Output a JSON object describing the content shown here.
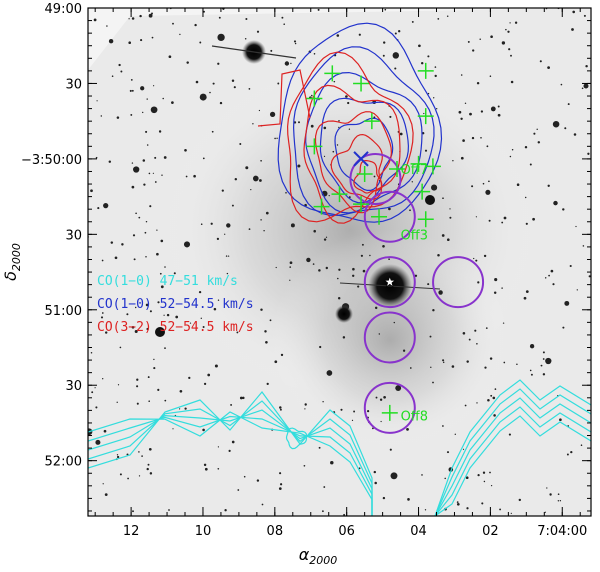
{
  "chart_data": {
    "type": "contour_overlay",
    "image": "grayscale optical/NIR image of star field with nebulosity",
    "xlabel_symbol": "α",
    "xlabel_sub": "2000",
    "ylabel_symbol": "δ",
    "ylabel_sub": "2000",
    "x_ticks": [
      {
        "ra_s": 12,
        "label": "12"
      },
      {
        "ra_s": 10,
        "label": "10"
      },
      {
        "ra_s": 8,
        "label": "08"
      },
      {
        "ra_s": 6,
        "label": "06"
      },
      {
        "ra_s": 4,
        "label": "04"
      },
      {
        "ra_s": 2,
        "label": "02"
      },
      {
        "ra_s": 0,
        "label": "7:04:00"
      }
    ],
    "y_ticks": [
      {
        "dec_arcsec_below_49": 0,
        "label": "49:00"
      },
      {
        "dec_arcsec_below_49": 30,
        "label": "30"
      },
      {
        "dec_arcsec_below_49": 60,
        "label": "−3:50:00"
      },
      {
        "dec_arcsec_below_49": 90,
        "label": "30"
      },
      {
        "dec_arcsec_below_49": 120,
        "label": "51:00"
      },
      {
        "dec_arcsec_below_49": 150,
        "label": "30"
      },
      {
        "dec_arcsec_below_49": 180,
        "label": "52:00"
      }
    ],
    "xlim_ra_s": [
      13.2,
      -0.8
    ],
    "ylim_dec_arcsec_below_49": [
      0,
      202
    ],
    "legend": [
      {
        "text": "CO(1−0) 47−51  km/s",
        "color": "#33dddd"
      },
      {
        "text": "CO(1−0) 52−54.5 km/s",
        "color": "#2233cc"
      },
      {
        "text": "CO(3−2) 52−54.5 km/s",
        "color": "#dd2222"
      }
    ],
    "series": [
      {
        "name": "CO(1-0) 47-51 km/s",
        "color": "#33dddd",
        "levels": 5
      },
      {
        "name": "CO(1-0) 52-54.5 km/s",
        "color": "#2233cc",
        "levels": 5
      },
      {
        "name": "CO(3-2) 52-54.5 km/s",
        "color": "#dd2222",
        "levels": 5
      }
    ],
    "star_marker": {
      "ra_s": 4.8,
      "dec_arcsec_below_49": 109
    },
    "circles": [
      {
        "ra_s": 5.2,
        "dec_arcsec_below_49": 68
      },
      {
        "ra_s": 4.8,
        "dec_arcsec_below_49": 83
      },
      {
        "ra_s": 4.8,
        "dec_arcsec_below_49": 109
      },
      {
        "ra_s": 2.9,
        "dec_arcsec_below_49": 109
      },
      {
        "ra_s": 4.8,
        "dec_arcsec_below_49": 131
      },
      {
        "ra_s": 4.8,
        "dec_arcsec_below_49": 159
      }
    ],
    "crosses": [
      {
        "ra_s": 6.4,
        "dec_arcsec_below_49": 26
      },
      {
        "ra_s": 5.6,
        "dec_arcsec_below_49": 30
      },
      {
        "ra_s": 3.8,
        "dec_arcsec_below_49": 25
      },
      {
        "ra_s": 6.9,
        "dec_arcsec_below_49": 36
      },
      {
        "ra_s": 3.8,
        "dec_arcsec_below_49": 43
      },
      {
        "ra_s": 5.3,
        "dec_arcsec_below_49": 45
      },
      {
        "ra_s": 6.9,
        "dec_arcsec_below_49": 55
      },
      {
        "ra_s": 4.0,
        "dec_arcsec_below_49": 62
      },
      {
        "ra_s": 5.5,
        "dec_arcsec_below_49": 66
      },
      {
        "ra_s": 4.6,
        "dec_arcsec_below_49": 64
      },
      {
        "ra_s": 3.6,
        "dec_arcsec_below_49": 63
      },
      {
        "ra_s": 6.2,
        "dec_arcsec_below_49": 74
      },
      {
        "ra_s": 3.9,
        "dec_arcsec_below_49": 73
      },
      {
        "ra_s": 5.6,
        "dec_arcsec_below_49": 78
      },
      {
        "ra_s": 6.7,
        "dec_arcsec_below_49": 79
      },
      {
        "ra_s": 5.1,
        "dec_arcsec_below_49": 83
      },
      {
        "ra_s": 3.8,
        "dec_arcsec_below_49": 84
      },
      {
        "ra_s": 4.8,
        "dec_arcsec_below_49": 161
      }
    ],
    "blue_x_marker": {
      "ra_s": 5.6,
      "dec_arcsec_below_49": 60
    },
    "source_labels": [
      {
        "text": "Off7",
        "ra_s": 4.5,
        "dec_arcsec_below_49": 64
      },
      {
        "text": "Off3",
        "ra_s": 4.5,
        "dec_arcsec_below_49": 90
      },
      {
        "text": "Off8",
        "ra_s": 4.5,
        "dec_arcsec_below_49": 162
      }
    ]
  }
}
